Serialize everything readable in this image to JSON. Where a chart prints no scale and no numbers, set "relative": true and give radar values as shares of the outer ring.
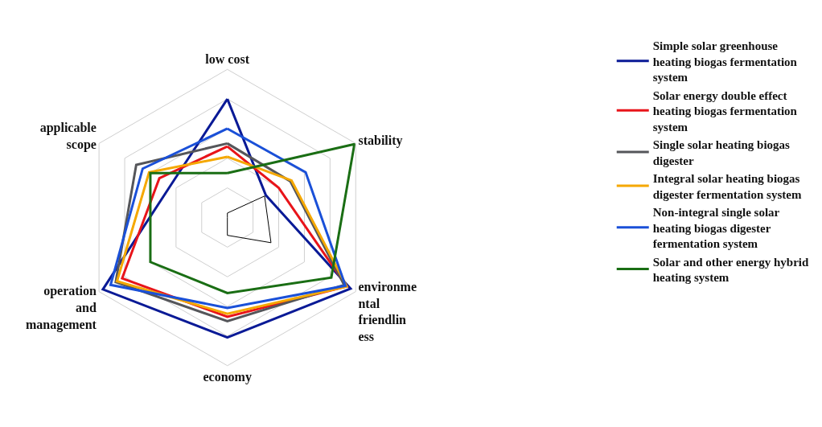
{
  "chart_data": {
    "type": "radar",
    "relative": true,
    "legend": "right",
    "grid": true,
    "categories": [
      "low cost",
      "stability",
      "environmental friendliness",
      "economy",
      "operation and management",
      "applicable scope"
    ],
    "series": [
      {
        "name": "Simple solar greenhouse heating biogas fermentation system",
        "color": "#0a1a96",
        "values": [
          0.8,
          0.3,
          0.96,
          0.81,
          0.97,
          0.44
        ]
      },
      {
        "name": "Solar energy double effect heating biogas fermentation system",
        "color": "#e8141a",
        "values": [
          0.48,
          0.4,
          0.93,
          0.67,
          0.82,
          0.53
        ]
      },
      {
        "name": "Single solar heating biogas digester",
        "color": "#55565a",
        "values": [
          0.5,
          0.49,
          0.91,
          0.7,
          0.87,
          0.71
        ]
      },
      {
        "name": "Integral solar heating biogas digester fermentation system",
        "color": "#f5a800",
        "values": [
          0.41,
          0.5,
          0.93,
          0.65,
          0.86,
          0.61
        ]
      },
      {
        "name": "Non-integral single solar heating biogas digester fermentation system",
        "color": "#1a50d8",
        "values": [
          0.6,
          0.61,
          0.92,
          0.61,
          0.91,
          0.66
        ]
      },
      {
        "name": "Solar and other energy hybrid heating system",
        "color": "#1a6e14",
        "values": [
          0.3,
          0.99,
          0.81,
          0.51,
          0.6,
          0.6
        ]
      },
      {
        "color": "#000000",
        "values": [
          0.03,
          0.29,
          0.34,
          0.12,
          0.0,
          0.0
        ]
      }
    ]
  }
}
